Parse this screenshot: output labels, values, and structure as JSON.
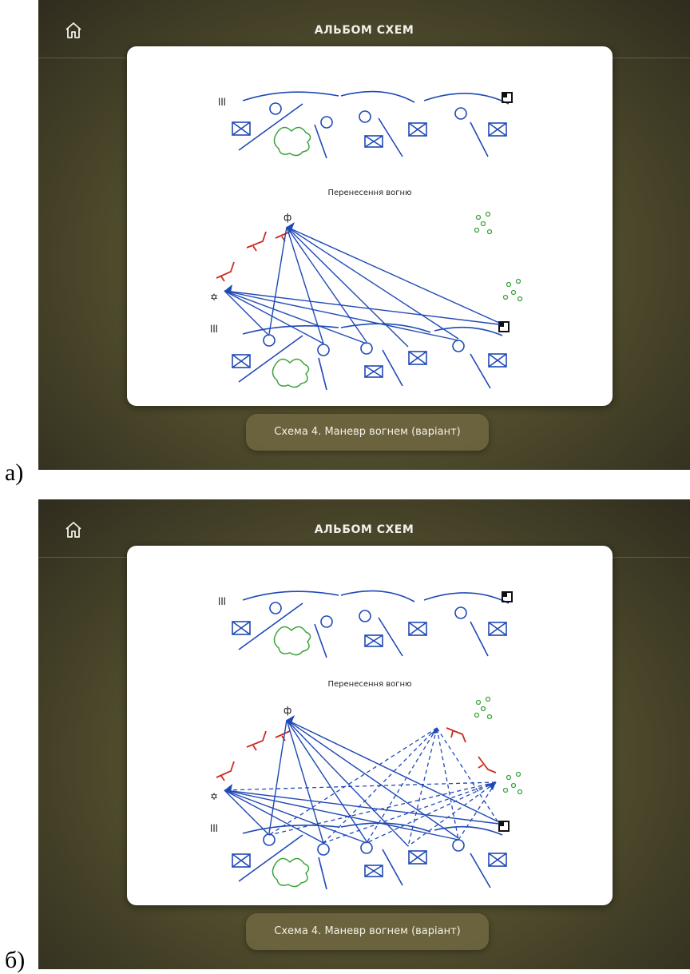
{
  "labels": {
    "a": "а)",
    "b": "б)"
  },
  "app": {
    "title": "АЛЬБОМ СХЕМ"
  },
  "scheme": {
    "heading": "Перенесення вогню",
    "caption": "Схема 4. Маневр вогнем (варіант)"
  },
  "colors": {
    "friendly": "#1f49b5",
    "fire_dashed": "#1f49b5",
    "obstacle": "#cc2a22",
    "terrain": "#3da33d",
    "background_dark": "#3f3b25"
  },
  "icons": [
    "home-icon",
    "antitank-obstacle-icon",
    "command-post-icon",
    "armored-vehicle-icon",
    "artillery-icon",
    "bush-icon",
    "observation-post-icon",
    "enemy-position-icon",
    "mine-barrier-icon"
  ]
}
